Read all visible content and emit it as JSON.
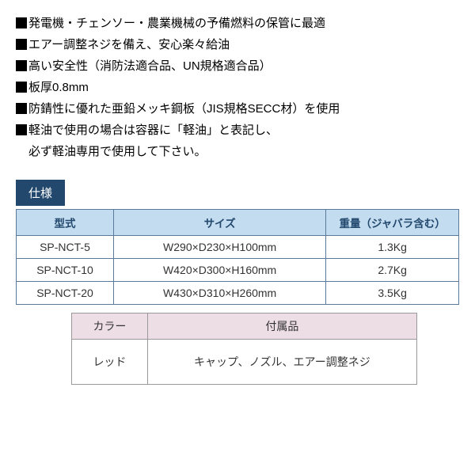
{
  "bullets": [
    "発電機・チェンソー・農業機械の予備燃料の保管に最適",
    "エアー調整ネジを備え、安心楽々給油",
    "高い安全性（消防法適合品、UN規格適合品）",
    "板厚0.8mm",
    "防錆性に優れた亜鉛メッキ鋼板（JIS規格SECC材）を使用"
  ],
  "bullet_last": {
    "line1": "軽油で使用の場合は容器に「軽油」と表記し、",
    "line2": "必ず軽油専用で使用して下さい。"
  },
  "spec_label": "仕様",
  "spec_table": {
    "headers": {
      "model": "型式",
      "size": "サイズ",
      "weight": "重量（ジャバラ含む）"
    },
    "rows": [
      {
        "model": "SP-NCT-5",
        "size": "W290×D230×H100mm",
        "weight": "1.3Kg"
      },
      {
        "model": "SP-NCT-10",
        "size": "W420×D300×H160mm",
        "weight": "2.7Kg"
      },
      {
        "model": "SP-NCT-20",
        "size": "W430×D310×H260mm",
        "weight": "3.5Kg"
      }
    ]
  },
  "sub_table": {
    "headers": {
      "color": "カラー",
      "accessories": "付属品"
    },
    "row": {
      "color": "レッド",
      "accessories": "キャップ、ノズル、エアー調整ネジ"
    }
  },
  "colors": {
    "spec_label_bg": "#23486e",
    "spec_header_bg": "#c3dcef",
    "spec_header_fg": "#23486e",
    "spec_border": "#5a7a99",
    "sub_header_bg": "#eddde5",
    "sub_border": "#999999",
    "background": "#ffffff",
    "text": "#000000"
  }
}
